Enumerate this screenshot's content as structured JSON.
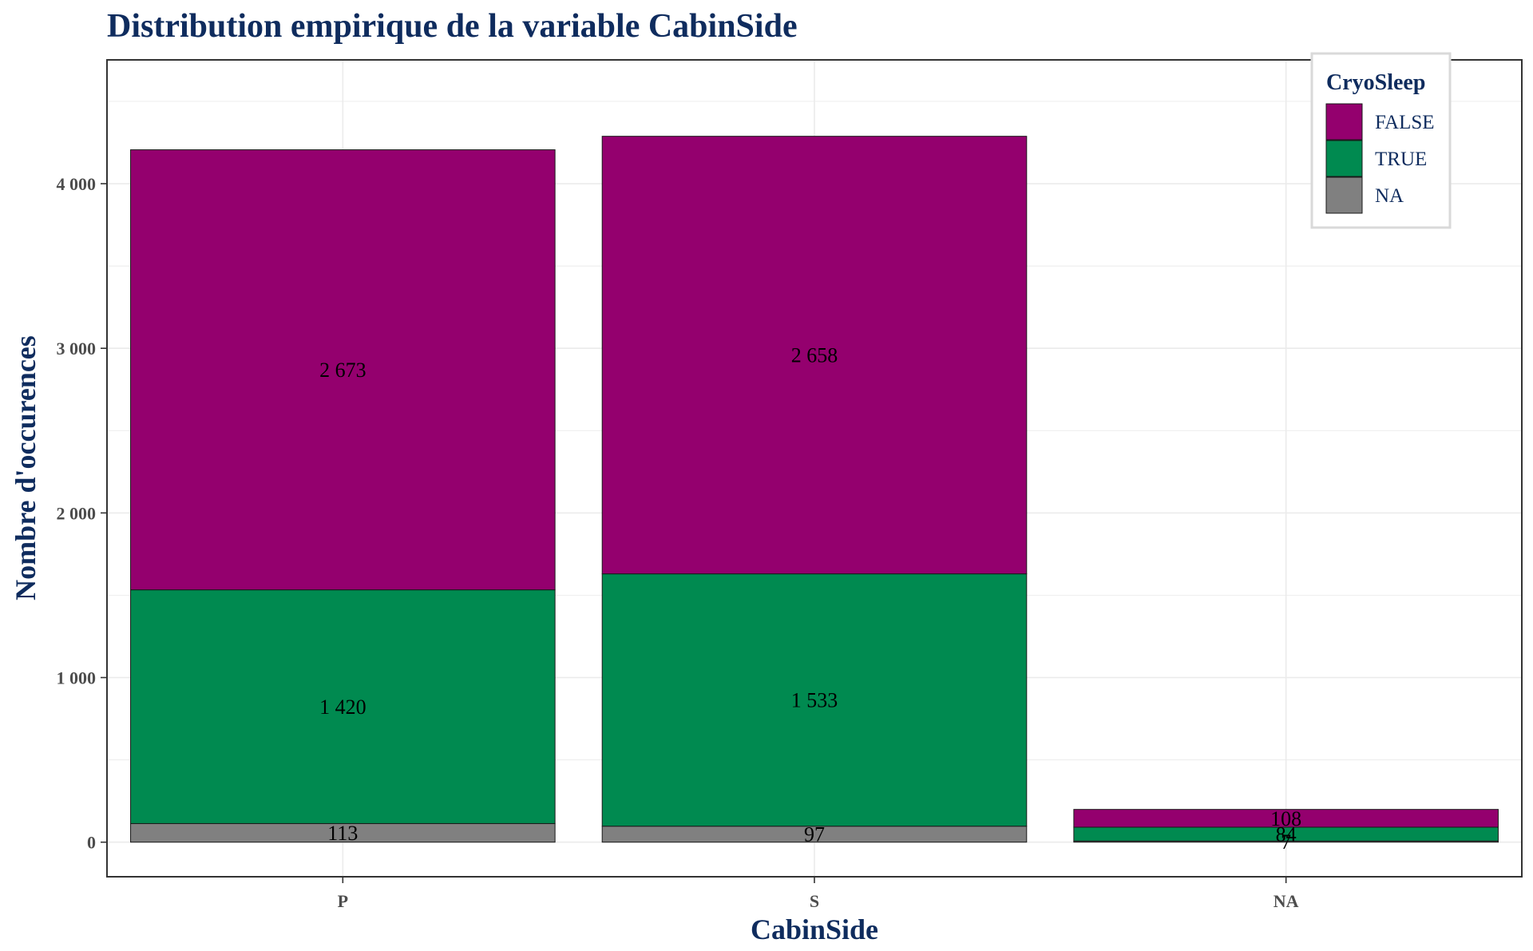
{
  "colors": {
    "title": "#0f2c5e",
    "FALSE": "#94006e",
    "TRUE": "#008a50",
    "NA": "#808080",
    "grid": "#ebebeb",
    "frame": "#333333"
  },
  "chart_data": {
    "type": "bar",
    "stacked": true,
    "title": "Distribution empirique de la variable CabinSide",
    "xlabel": "CabinSide",
    "ylabel": "Nombre d'occurences",
    "categories": [
      "P",
      "S",
      "NA"
    ],
    "series": [
      {
        "name": "NA",
        "values": [
          113,
          97,
          7
        ],
        "labels": [
          "113",
          "97",
          "7"
        ]
      },
      {
        "name": "TRUE",
        "values": [
          1420,
          1533,
          84
        ],
        "labels": [
          "1 420",
          "1 533",
          "84"
        ]
      },
      {
        "name": "FALSE",
        "values": [
          2673,
          2658,
          108
        ],
        "labels": [
          "2 673",
          "2 658",
          "108"
        ]
      }
    ],
    "yticks": [
      0,
      1000,
      2000,
      3000,
      4000
    ],
    "ytick_labels": [
      "0",
      "1 000",
      "2 000",
      "3 000",
      "4 000"
    ],
    "ylim": [
      -210,
      4752
    ],
    "grid": true,
    "legend": {
      "title": "CryoSleep",
      "entries": [
        "FALSE",
        "TRUE",
        "NA"
      ],
      "position": "top-right"
    }
  }
}
